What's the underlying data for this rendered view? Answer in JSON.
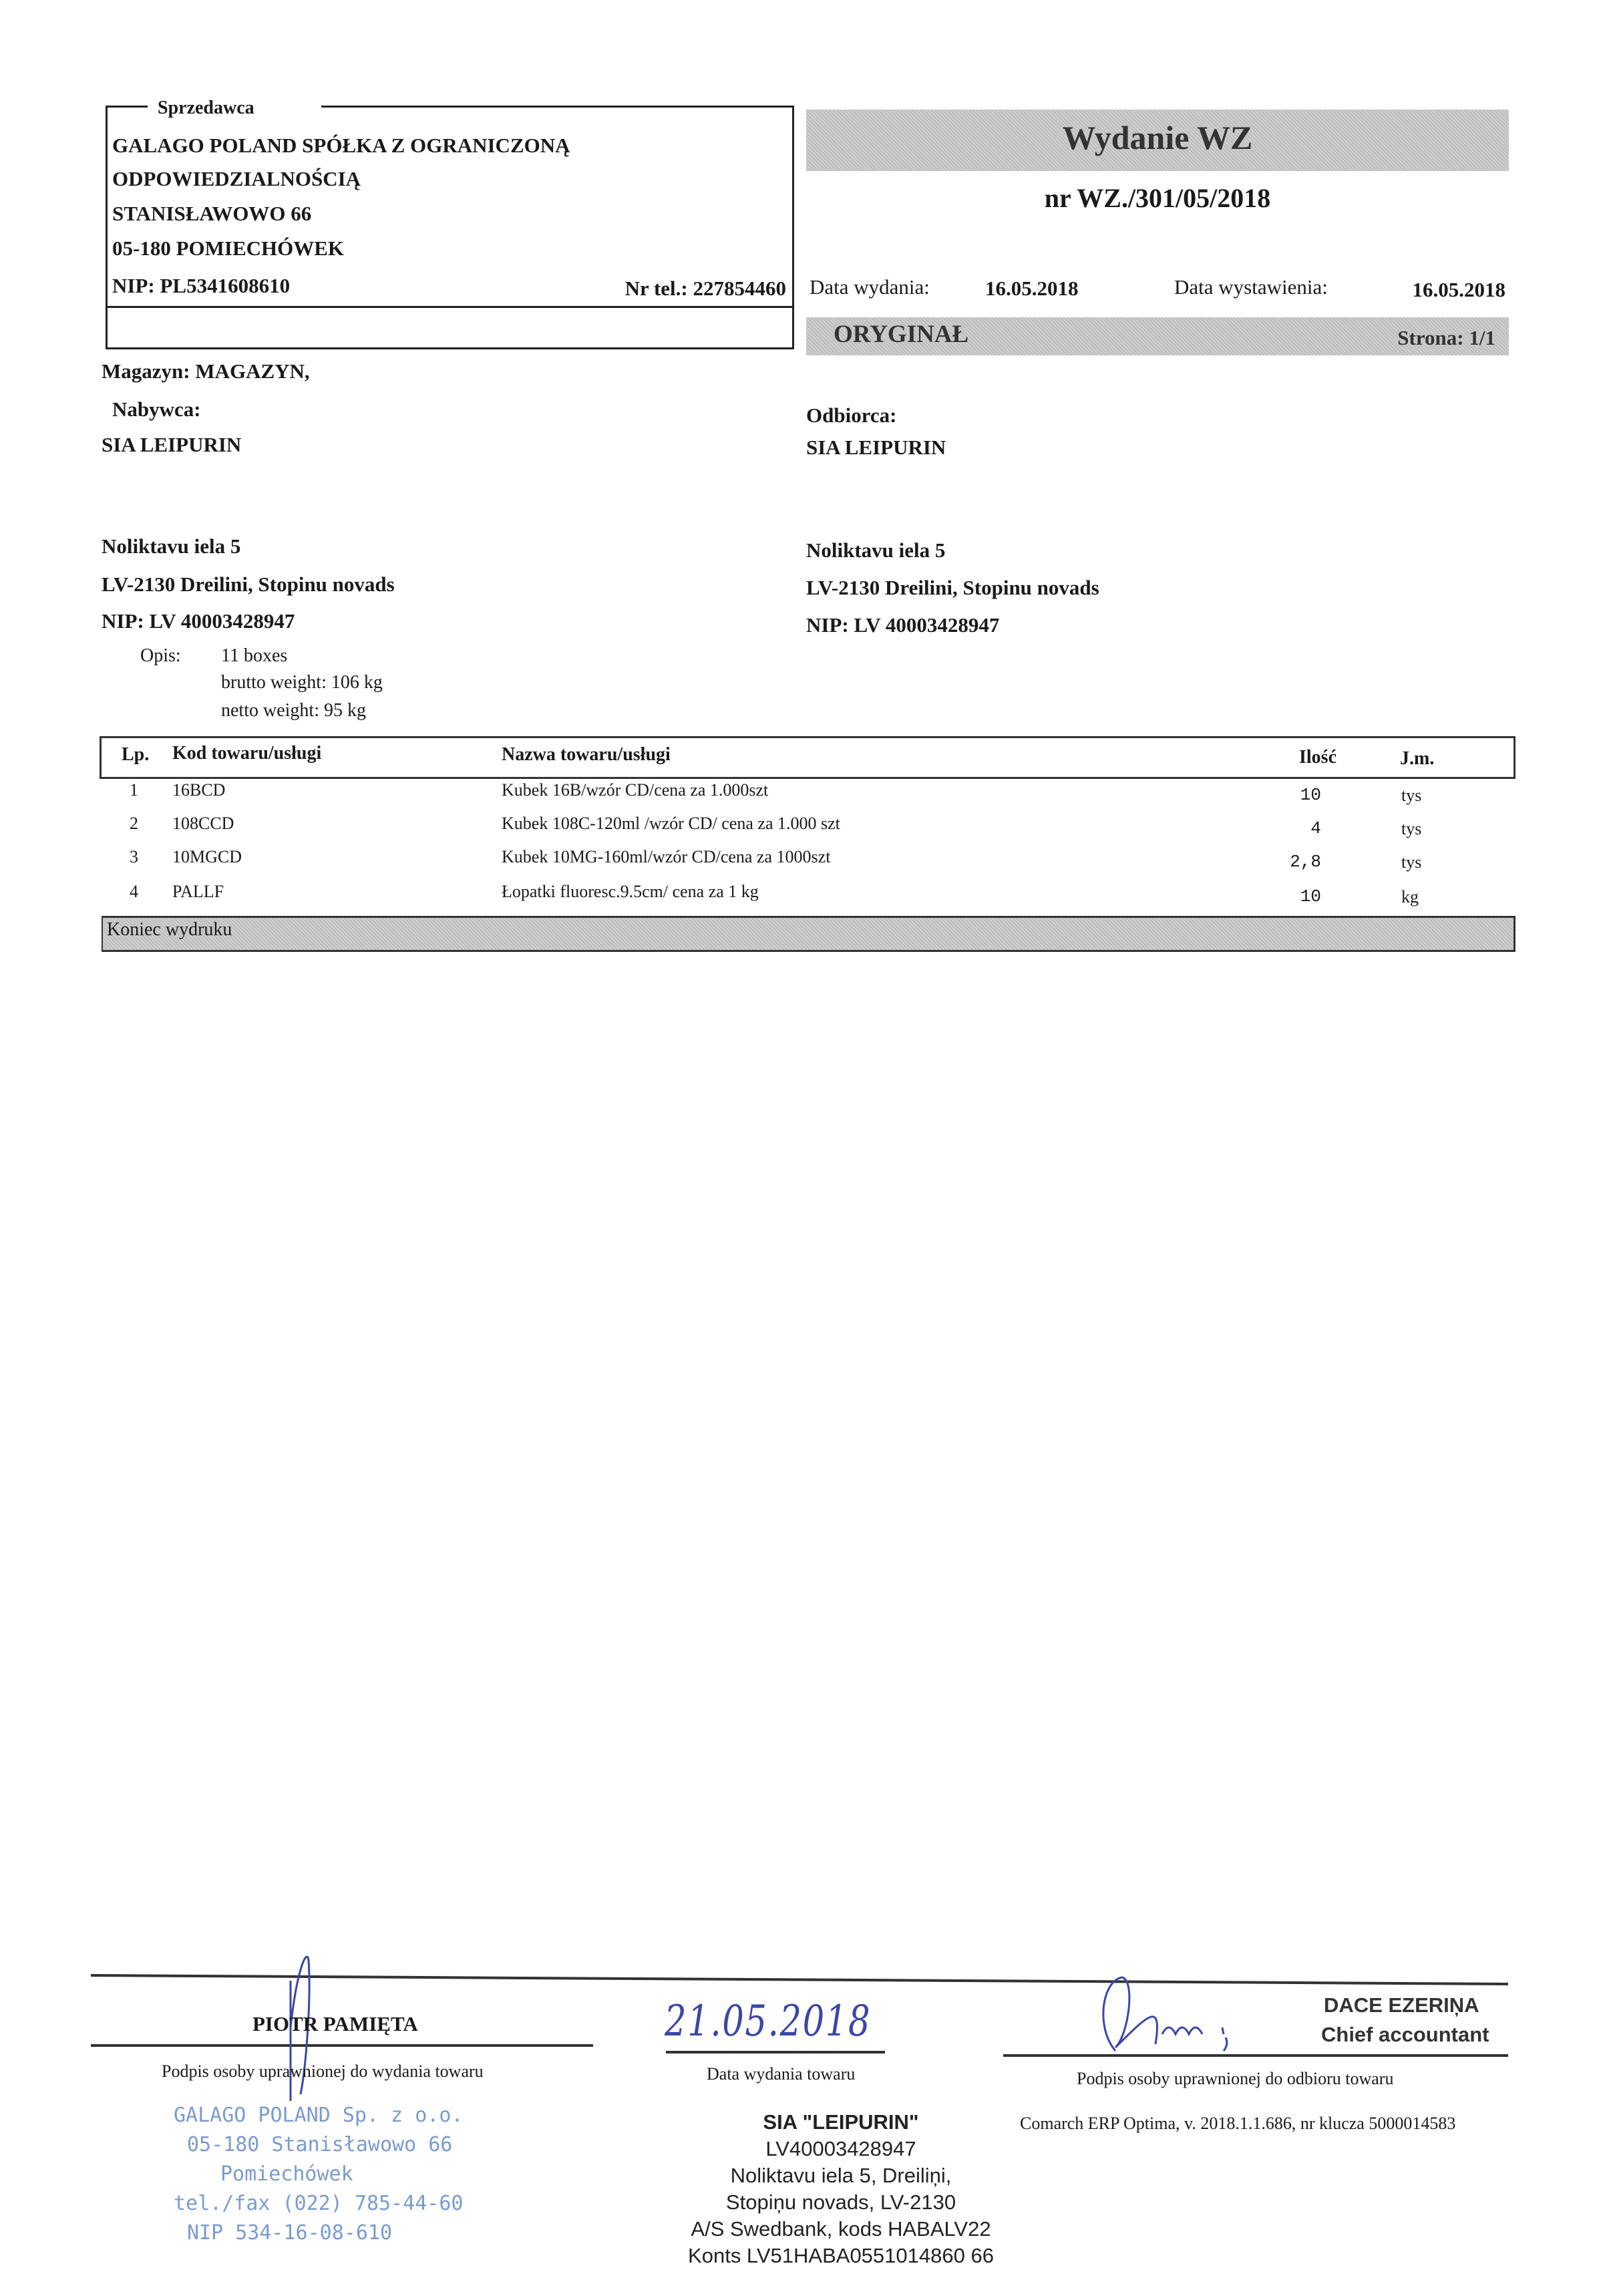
{
  "seller": {
    "label": "Sprzedawca",
    "name_line1": "GALAGO POLAND SPÓŁKA Z OGRANICZONĄ",
    "name_line2": "ODPOWIEDZIALNOŚCIĄ",
    "street": "STANISŁAWOWO 66",
    "city": "05-180 POMIECHÓWEK",
    "nip": "NIP:  PL5341608610",
    "phone": "Nr tel.: 227854460"
  },
  "document": {
    "title": "Wydanie WZ",
    "number": "nr WZ./301/05/2018",
    "issue_date_label": "Data wydania:",
    "issue_date": "16.05.2018",
    "created_date_label": "Data  wystawienia:",
    "created_date": "16.05.2018",
    "copy_type": "ORYGINAŁ",
    "page": "Strona: 1/1"
  },
  "warehouse": "Magazyn: MAGAZYN,",
  "buyer": {
    "label": "Nabywca:",
    "name": "SIA LEIPURIN",
    "street": "Noliktavu iela 5",
    "city": "LV-2130 Dreilini, Stopinu novads",
    "nip": "NIP: LV 40003428947"
  },
  "recipient": {
    "label": "Odbiorca:",
    "name": "SIA LEIPURIN",
    "street": "Noliktavu iela 5",
    "city": "LV-2130 Dreilini, Stopinu novads",
    "nip": "NIP: LV 40003428947"
  },
  "description": {
    "label": "Opis:",
    "lines": [
      "11 boxes",
      "brutto weight: 106 kg",
      "netto weight: 95 kg"
    ]
  },
  "table": {
    "headers": {
      "lp": "Lp.",
      "code": "Kod towaru/usługi",
      "name": "Nazwa towaru/usługi",
      "qty": "Ilość",
      "unit": "J.m."
    },
    "rows": [
      {
        "lp": "1",
        "code": "16BCD",
        "name": "Kubek 16B/wzór CD/cena za 1.000szt",
        "qty": "10",
        "unit": "tys"
      },
      {
        "lp": "2",
        "code": "108CCD",
        "name": "Kubek 108C-120ml /wzór CD/ cena za 1.000 szt",
        "qty": "4",
        "unit": "tys"
      },
      {
        "lp": "3",
        "code": "10MGCD",
        "name": "Kubek 10MG-160ml/wzór CD/cena za 1000szt",
        "qty": "2,8",
        "unit": "tys"
      },
      {
        "lp": "4",
        "code": "PALLF",
        "name": "Łopatki fluoresc.9.5cm/ cena za 1 kg",
        "qty": "10",
        "unit": "kg"
      }
    ],
    "footer": "Koniec wydruku"
  },
  "signatures": {
    "issuer_name": "PIOTR PAMIĘTA",
    "issuer_caption": "Podpis osoby uprawnionej do wydania towaru",
    "date_handwritten": "21.05.2018",
    "date_caption": "Data wydania towaru",
    "receiver_name": "DACE EZERIŅA",
    "receiver_title": "Chief accountant",
    "receiver_caption": "Podpis osoby uprawnionej do odbioru towaru",
    "software": "Comarch ERP Optima, v. 2018.1.1.686, nr klucza 5000014583"
  },
  "seller_stamp": [
    "GALAGO POLAND Sp. z o.o.",
    "05-180 Stanisławowo 66",
    "Pomiechówek",
    "tel./fax (022) 785-44-60",
    "NIP 534-16-08-610"
  ],
  "recipient_stamp": [
    "SIA \"LEIPURIN\"",
    "LV40003428947",
    "Noliktavu iela 5, Dreiliņi,",
    "Stopiņu novads, LV-2130",
    "A/S Swedbank, kods HABALV22",
    "Konts LV51HABA0551014860 66"
  ],
  "colors": {
    "ink_blue": "#3b46a8",
    "stamp_blue": "#7a9bd1",
    "band_grey": "#c6c6c6"
  }
}
